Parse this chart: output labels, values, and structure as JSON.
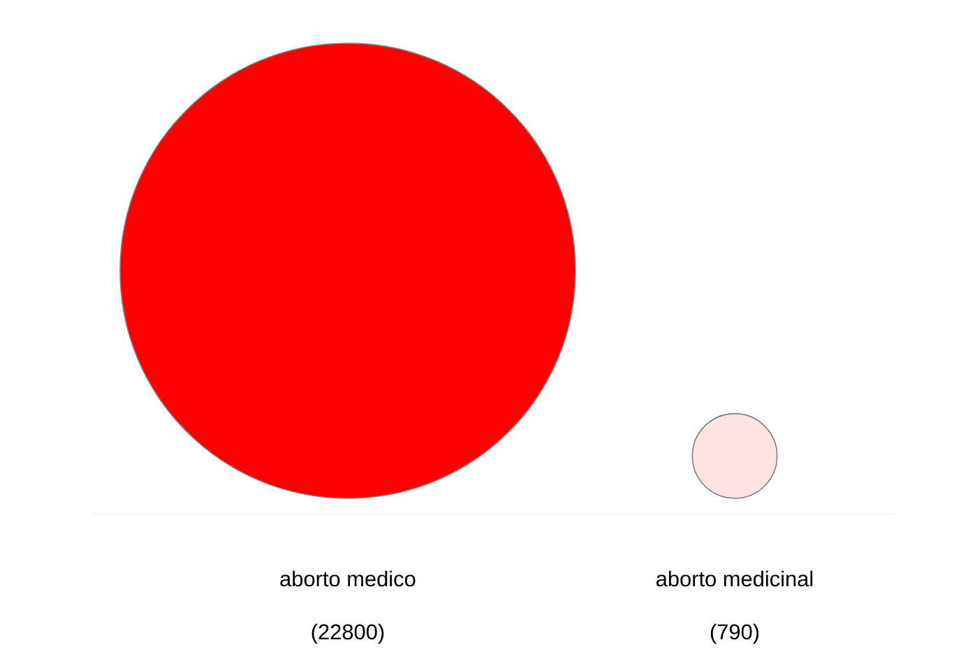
{
  "chart_data": {
    "type": "other",
    "categories": [
      "aborto medico",
      "aborto medicinal"
    ],
    "values": [
      22800,
      790
    ],
    "value_labels": [
      "(22800)",
      "(790)"
    ],
    "colors": [
      "#ff0000",
      "#fde3e3"
    ]
  }
}
